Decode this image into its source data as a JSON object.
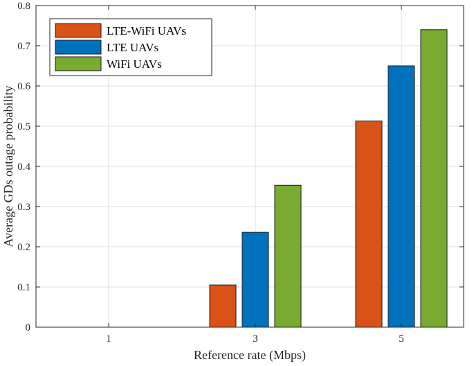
{
  "chart_data": {
    "type": "bar",
    "categories": [
      "1",
      "3",
      "5"
    ],
    "series": [
      {
        "name": "LTE-WiFi UAVs",
        "color": "#D95319",
        "values": [
          0,
          0.105,
          0.513
        ]
      },
      {
        "name": "LTE UAVs",
        "color": "#0072BD",
        "values": [
          0,
          0.236,
          0.65
        ]
      },
      {
        "name": "WiFi UAVs",
        "color": "#77AC30",
        "values": [
          0,
          0.353,
          0.74
        ]
      }
    ],
    "xlabel": "Reference rate (Mbps)",
    "ylabel": "Average GDs outage probability",
    "ylim": [
      0,
      0.8
    ],
    "yticks": [
      "0",
      "0.1",
      "0.2",
      "0.3",
      "0.4",
      "0.5",
      "0.6",
      "0.7",
      "0.8"
    ],
    "grid": true,
    "legend_position": "top-left"
  }
}
